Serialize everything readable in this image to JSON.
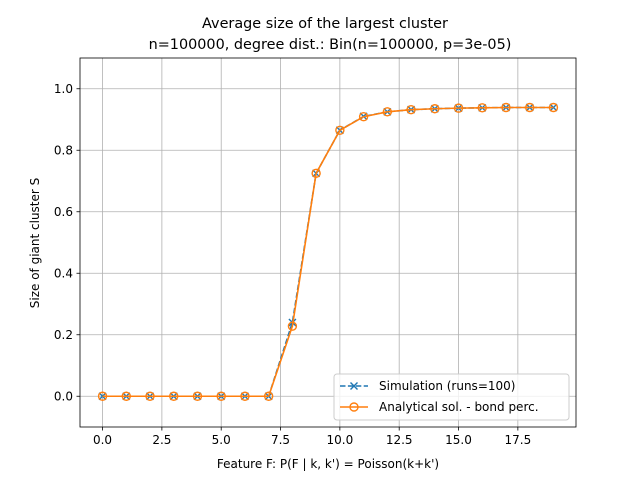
{
  "chart_data": {
    "type": "line",
    "title": "Average size of the largest cluster",
    "subtitle": "n=100000, degree dist.: Bin(n=100000, p=3e-05)",
    "xlabel": "Feature F: P(F | k, k') = Poisson(k+k')",
    "ylabel": "Size of giant cluster S",
    "xlim": [
      -0.95,
      19.95
    ],
    "ylim": [
      -0.1,
      1.1
    ],
    "grid": true,
    "legend_position": "lower right",
    "xticks": [
      0.0,
      2.5,
      5.0,
      7.5,
      10.0,
      12.5,
      15.0,
      17.5
    ],
    "xtick_labels": [
      "0.0",
      "2.5",
      "5.0",
      "7.5",
      "10.0",
      "12.5",
      "15.0",
      "17.5"
    ],
    "yticks": [
      0.0,
      0.2,
      0.4,
      0.6,
      0.8,
      1.0
    ],
    "ytick_labels": [
      "0.0",
      "0.2",
      "0.4",
      "0.6",
      "0.8",
      "1.0"
    ],
    "x": [
      0,
      1,
      2,
      3,
      4,
      5,
      6,
      7,
      8,
      9,
      10,
      11,
      12,
      13,
      14,
      15,
      16,
      17,
      18,
      19
    ],
    "series": [
      {
        "name": "Simulation (runs=100)",
        "color": "#1f77b4",
        "marker": "x",
        "linestyle": "dashed",
        "values": [
          0.0,
          0.0,
          0.0,
          0.0,
          0.0,
          0.0,
          0.0,
          0.0,
          0.24,
          0.725,
          0.865,
          0.91,
          0.925,
          0.932,
          0.935,
          0.937,
          0.938,
          0.939,
          0.939,
          0.939
        ]
      },
      {
        "name": "Analytical sol. - bond perc.",
        "color": "#ff7f0e",
        "marker": "o",
        "linestyle": "solid",
        "values": [
          0.0,
          0.0,
          0.0,
          0.0,
          0.0,
          0.0,
          0.0,
          0.0,
          0.228,
          0.725,
          0.865,
          0.909,
          0.925,
          0.932,
          0.935,
          0.937,
          0.938,
          0.939,
          0.939,
          0.939
        ]
      }
    ]
  }
}
